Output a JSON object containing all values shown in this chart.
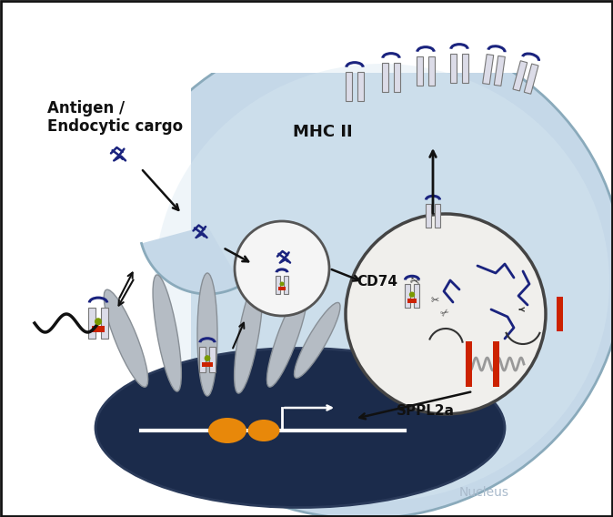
{
  "bg_white": "#FFFFFF",
  "cell_color": "#C5D8E8",
  "cell_edge": "#8AAABB",
  "nucleus_color": "#1B2B4B",
  "nucleus_edge": "#2A3A5A",
  "endo_color": "#F2F0EC",
  "endo_edge": "#555555",
  "lyso_color": "#F0EFEC",
  "lyso_edge": "#444444",
  "mhc_fill": "#DCDCE8",
  "mhc_edge": "#777777",
  "mhc_top": "#1A237E",
  "red_color": "#CC2200",
  "green_color": "#7A9900",
  "antigen_color": "#1A237E",
  "filop_fill": "#B5BCC4",
  "filop_edge": "#888F96",
  "arrow_color": "#111111",
  "orange_color": "#E8880A",
  "coil_color": "#999999",
  "label_antigen1": "Antigen /",
  "label_antigen2": "Endocytic cargo",
  "label_mhcii": "MHC II",
  "label_cd74": "CD74",
  "label_sppl2a": "SPPL2a",
  "label_nucleus": "Nucleus"
}
